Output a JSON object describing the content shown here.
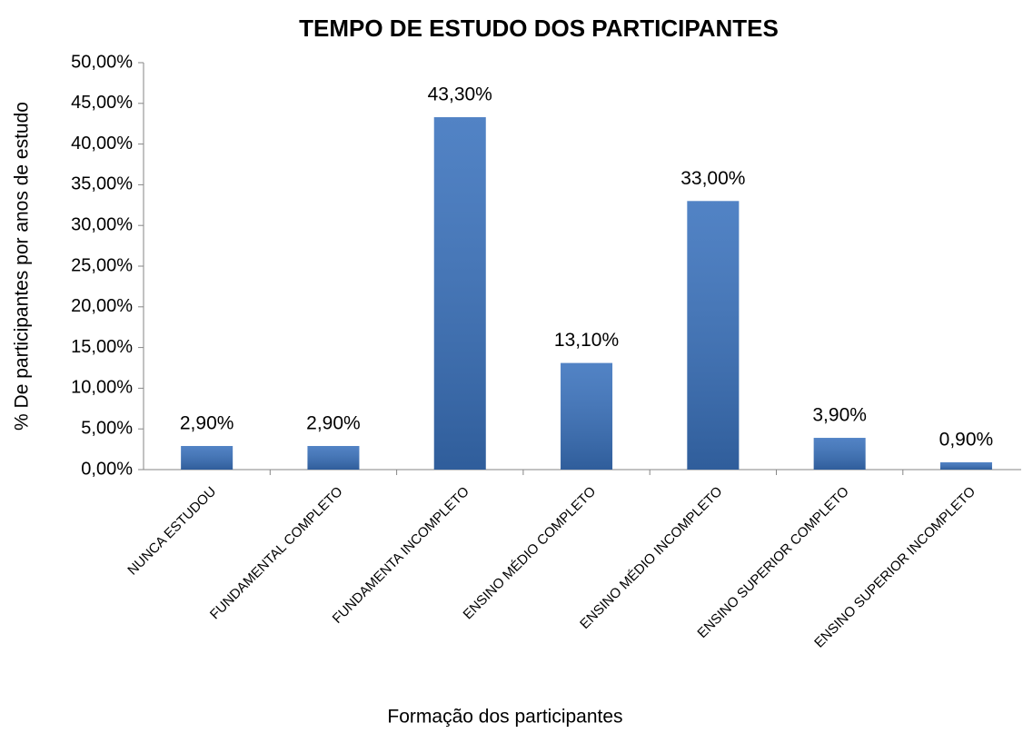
{
  "chart_data": {
    "type": "bar",
    "title": "TEMPO DE ESTUDO DOS PARTICIPANTES",
    "x_label": "Formação dos participantes",
    "y_label": "% De participantes por anos de estudo",
    "categories": [
      "NUNCA ESTUDOU",
      "FUNDAMENTAL COMPLETO",
      "FUNDAMENTA INCOMPLETO",
      "ENSINO MÉDIO COMPLETO",
      "ENSINO MÉDIO INCOMPLETO",
      "ENSINO SUPERIOR COMPLETO",
      "ENSINO SUPERIOR INCOMPLETO"
    ],
    "values": [
      2.9,
      2.9,
      43.3,
      13.1,
      33.0,
      3.9,
      0.9
    ],
    "value_labels": [
      "2,90%",
      "2,90%",
      "43,30%",
      "13,10%",
      "33,00%",
      "3,90%",
      "0,90%"
    ],
    "color": "#3a72bd",
    "ylim": [
      0,
      50
    ],
    "yticks": [
      {
        "value": 0,
        "label": "0,00%"
      },
      {
        "value": 5,
        "label": "5,00%"
      },
      {
        "value": 10,
        "label": "10,00%"
      },
      {
        "value": 15,
        "label": "15,00%"
      },
      {
        "value": 20,
        "label": "20,00%"
      },
      {
        "value": 25,
        "label": "25,00%"
      },
      {
        "value": 30,
        "label": "30,00%"
      },
      {
        "value": 35,
        "label": "35,00%"
      },
      {
        "value": 40,
        "label": "40,00%"
      },
      {
        "value": 45,
        "label": "45,00%"
      },
      {
        "value": 50,
        "label": "50,00%"
      }
    ],
    "grid": false
  }
}
